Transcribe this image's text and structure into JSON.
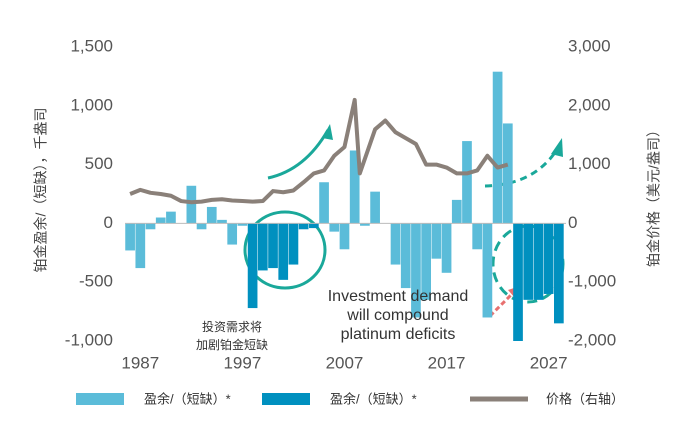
{
  "chart_data": {
    "type": "bar-line",
    "y_label": "铂金盈余/（短缺），千盎司",
    "y2_label": "铂金价格（美元/盎司）",
    "annotations": [
      [
        "投资需求将",
        "加剧铂金短缺"
      ],
      [
        "Investment demand",
        "will compound",
        "platinum deficits"
      ]
    ],
    "x": [
      1986,
      1987,
      1988,
      1989,
      1990,
      1991,
      1992,
      1993,
      1994,
      1995,
      1996,
      1997,
      1998,
      1999,
      2000,
      2001,
      2002,
      2003,
      2004,
      2005,
      2006,
      2007,
      2008,
      2009,
      2010,
      2011,
      2012,
      2013,
      2014,
      2015,
      2016,
      2017,
      2018,
      2019,
      2020,
      2021,
      2022,
      2023,
      2024,
      2025,
      2026,
      2027,
      2028
    ],
    "xlim": [
      1985.5,
      2028.7
    ],
    "xticks": [
      1987,
      1997,
      2007,
      2017,
      2027
    ],
    "ylim": [
      -1000,
      1500
    ],
    "yticks": [
      {
        "value": -1000,
        "label": "-1,000"
      },
      -500,
      0,
      500,
      {
        "value": 1000,
        "label": "1,000"
      },
      {
        "value": 1500,
        "label": "1,500"
      }
    ],
    "y2lim": [
      -2000,
      3000
    ],
    "y2ticks": [
      {
        "value": -2000,
        "label": "-2,000"
      },
      {
        "value": -1000,
        "label": "-1,000"
      },
      0,
      {
        "value": 1000,
        "label": "1,000"
      },
      {
        "value": 2000,
        "label": "2,000"
      },
      {
        "value": 3000,
        "label": "3,000"
      }
    ],
    "series": [
      {
        "name": "盈余/（短缺）*",
        "type": "bar",
        "color": "#5bbcd9",
        "values": [
          -230,
          -380,
          -50,
          50,
          100,
          null,
          320,
          -50,
          140,
          30,
          -180,
          -20,
          null,
          null,
          null,
          null,
          null,
          null,
          null,
          350,
          -70,
          -220,
          620,
          -20,
          270,
          null,
          -350,
          -550,
          -800,
          -650,
          -300,
          -420,
          200,
          700,
          -220,
          -800,
          1290,
          850,
          null,
          null,
          null,
          null,
          null
        ]
      },
      {
        "name": "盈余/（短缺）*",
        "type": "bar",
        "color": "#0090bf",
        "values": [
          null,
          null,
          null,
          null,
          null,
          null,
          null,
          null,
          null,
          null,
          null,
          null,
          -720,
          -400,
          -380,
          -480,
          -350,
          -50,
          -40,
          null,
          null,
          null,
          null,
          null,
          null,
          null,
          null,
          null,
          null,
          null,
          null,
          null,
          null,
          null,
          null,
          null,
          null,
          null,
          -1000,
          -650,
          -650,
          -600,
          -850
        ]
      },
      {
        "name": "价格（右轴）",
        "type": "line",
        "axis": "y2",
        "color": "#8a8079",
        "x": [
          1986,
          1987,
          1988,
          1989,
          1990,
          1991,
          1992,
          1993,
          1994,
          1995,
          1996,
          1997,
          1998,
          1999,
          2000,
          2001,
          2002,
          2003,
          2004,
          2005,
          2006,
          2007,
          2008,
          2008.5,
          2009,
          2010,
          2011,
          2012,
          2013,
          2014,
          2015,
          2016,
          2017,
          2018,
          2019,
          2020,
          2021,
          2022,
          2023
        ],
        "values": [
          500,
          570,
          520,
          500,
          470,
          380,
          360,
          370,
          400,
          410,
          390,
          380,
          370,
          380,
          550,
          530,
          560,
          700,
          850,
          900,
          1150,
          1300,
          2100,
          850,
          1100,
          1600,
          1750,
          1550,
          1450,
          1350,
          1000,
          1000,
          950,
          850,
          850,
          900,
          1150,
          950,
          1000
        ]
      }
    ]
  }
}
